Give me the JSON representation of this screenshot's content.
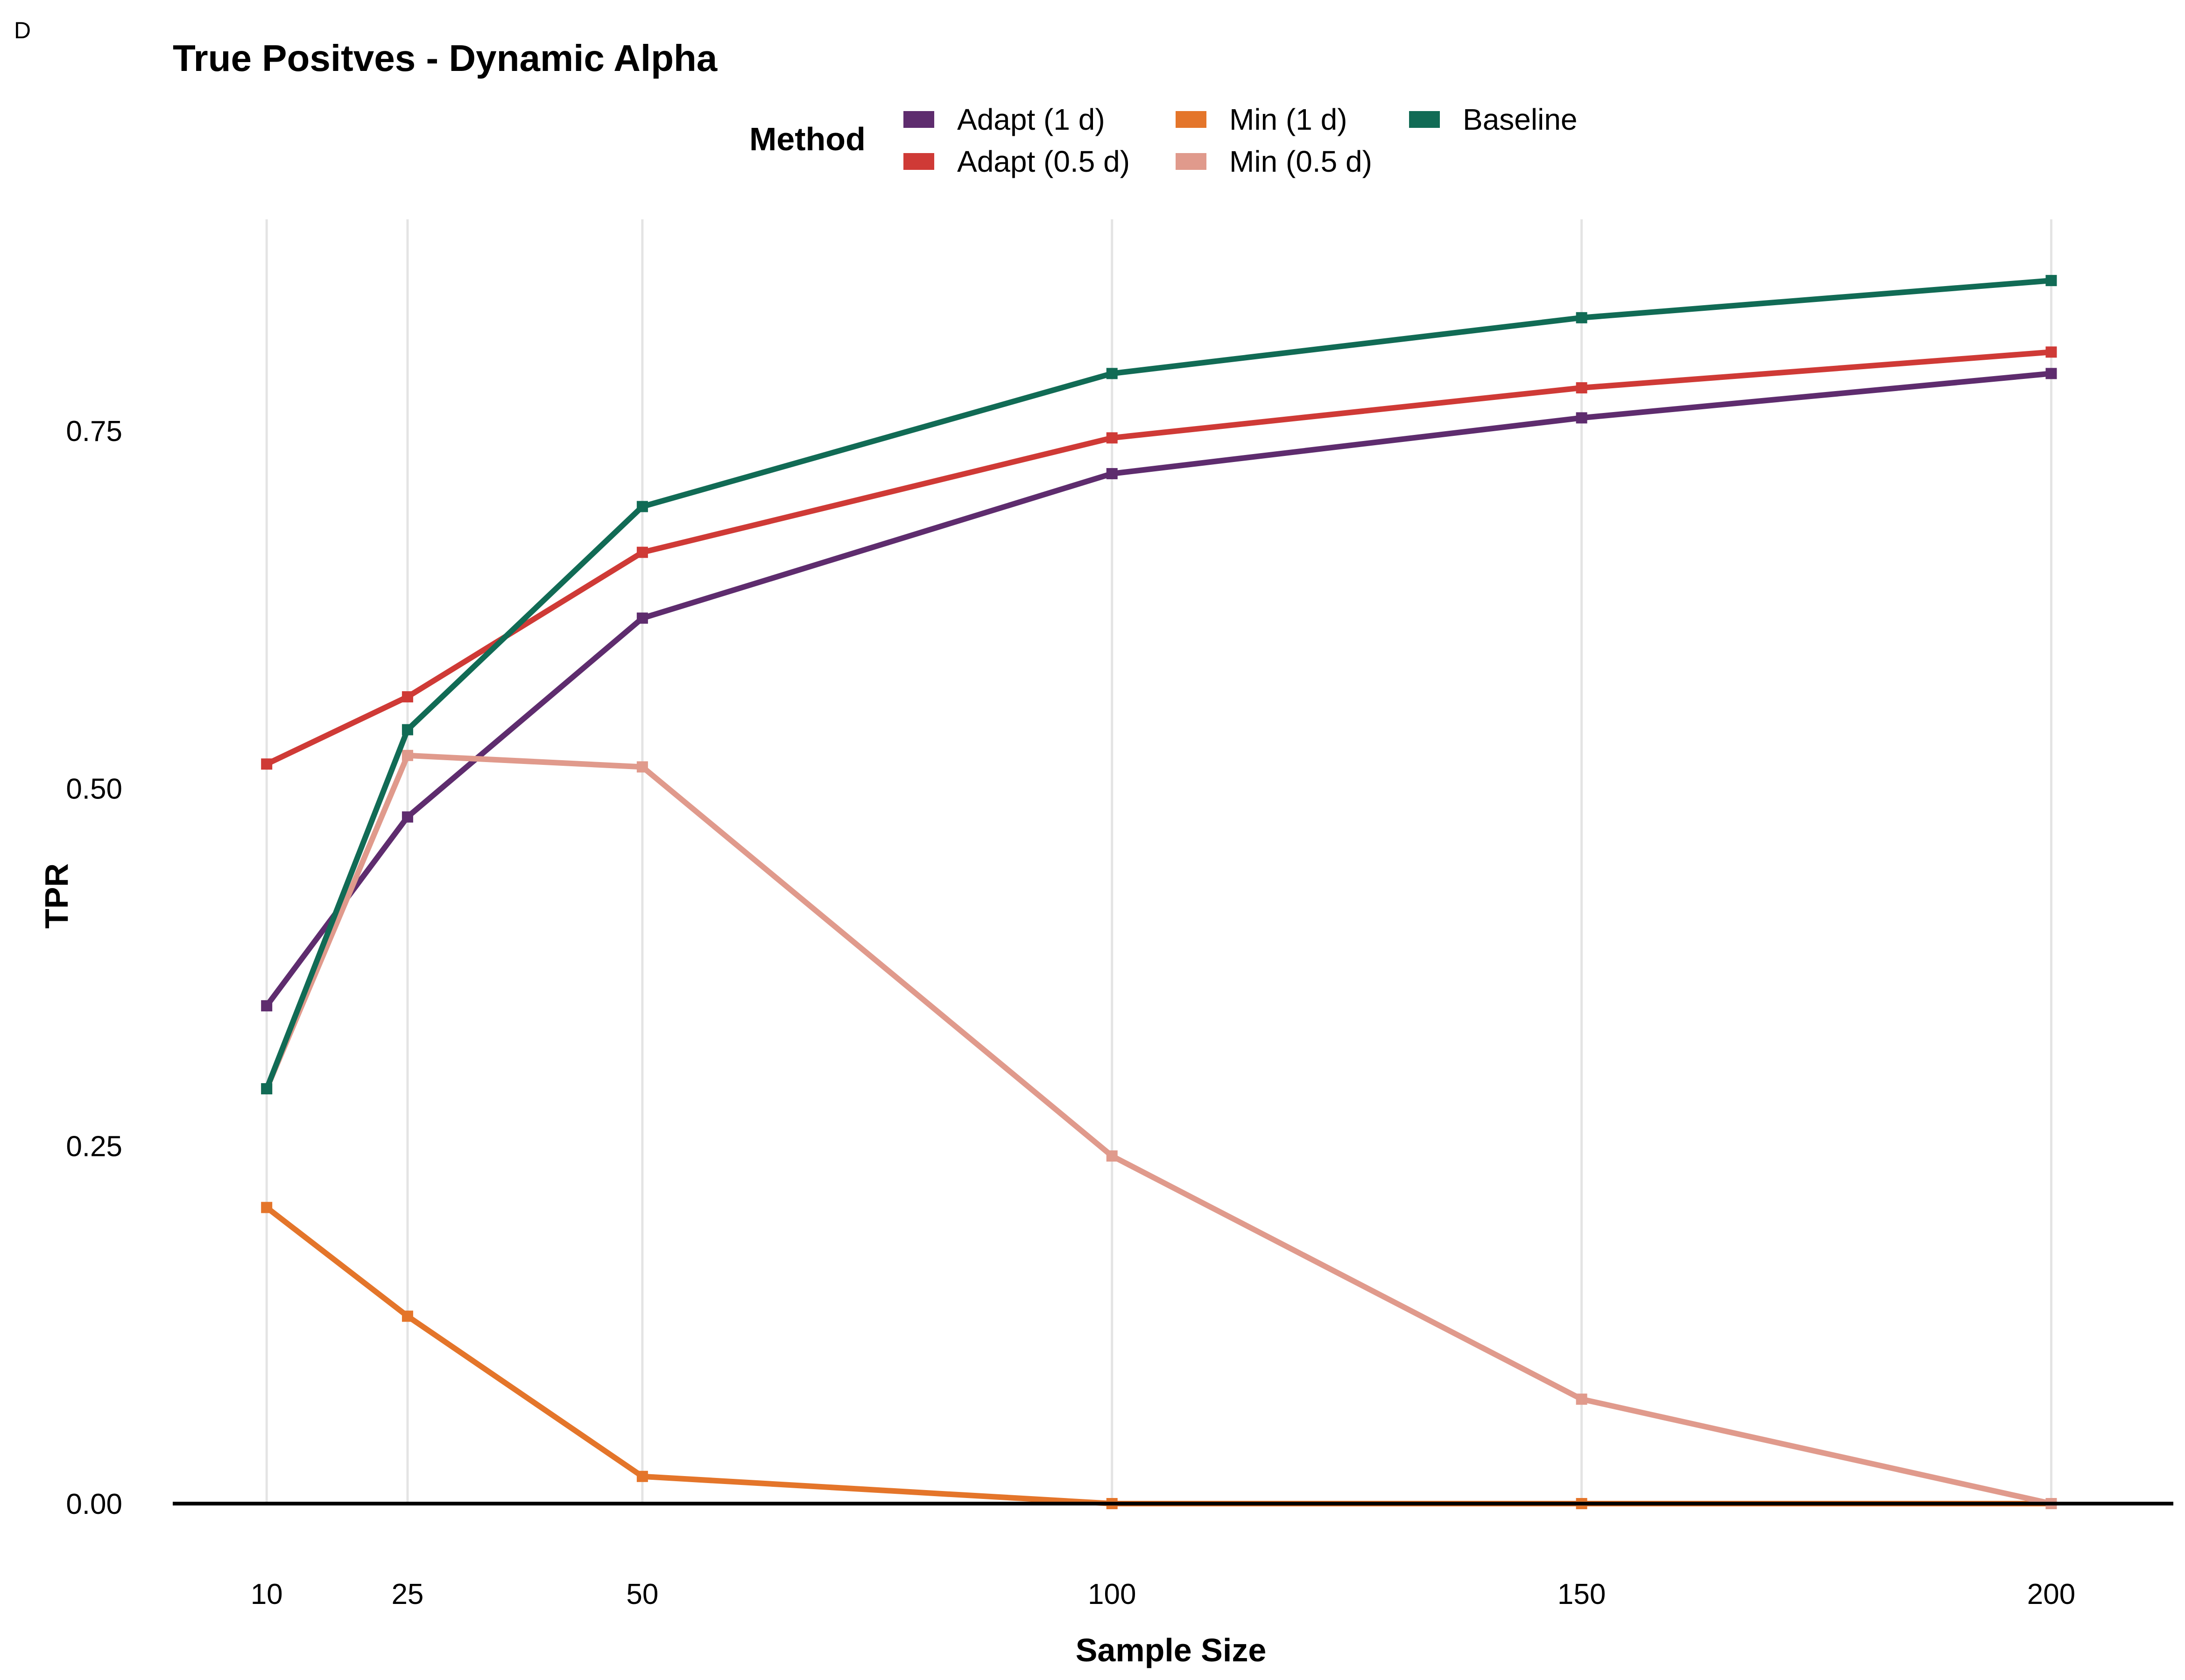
{
  "panel_label": "D",
  "chart_data": {
    "type": "line",
    "title": "True Positves - Dynamic Alpha",
    "xlabel": "Sample Size",
    "ylabel": "TPR",
    "x": [
      10,
      25,
      50,
      100,
      150,
      200
    ],
    "x_ticks": [
      "10",
      "25",
      "50",
      "100",
      "150",
      "200"
    ],
    "y_ticks": [
      "0.00",
      "0.25",
      "0.50",
      "0.75"
    ],
    "y_tick_values": [
      0,
      0.25,
      0.5,
      0.75
    ],
    "xlim": [
      0.5,
      6.5
    ],
    "ylim": [
      -0.04,
      0.9
    ],
    "x_scale": "categorical-like spacing by value",
    "grid": "vertical major lines only",
    "legend": {
      "title": "Method",
      "placement": "top"
    },
    "series": [
      {
        "name": "Adapt (1 d)",
        "color": "#5E2C6E",
        "values": [
          0.348,
          0.48,
          0.619,
          0.72,
          0.759,
          0.79
        ]
      },
      {
        "name": "Adapt (0.5 d)",
        "color": "#CF3A36",
        "values": [
          0.517,
          0.564,
          0.665,
          0.745,
          0.78,
          0.805
        ]
      },
      {
        "name": "Min (1 d)",
        "color": "#E4752A",
        "values": [
          0.207,
          0.131,
          0.019,
          0.0,
          0.0,
          0.0
        ]
      },
      {
        "name": "Min (0.5 d)",
        "color": "#E09A8C",
        "values": [
          0.29,
          0.523,
          0.515,
          0.243,
          0.073,
          0.0
        ]
      },
      {
        "name": "Baseline",
        "color": "#116B55",
        "values": [
          0.29,
          0.541,
          0.697,
          0.79,
          0.829,
          0.855
        ]
      }
    ]
  }
}
